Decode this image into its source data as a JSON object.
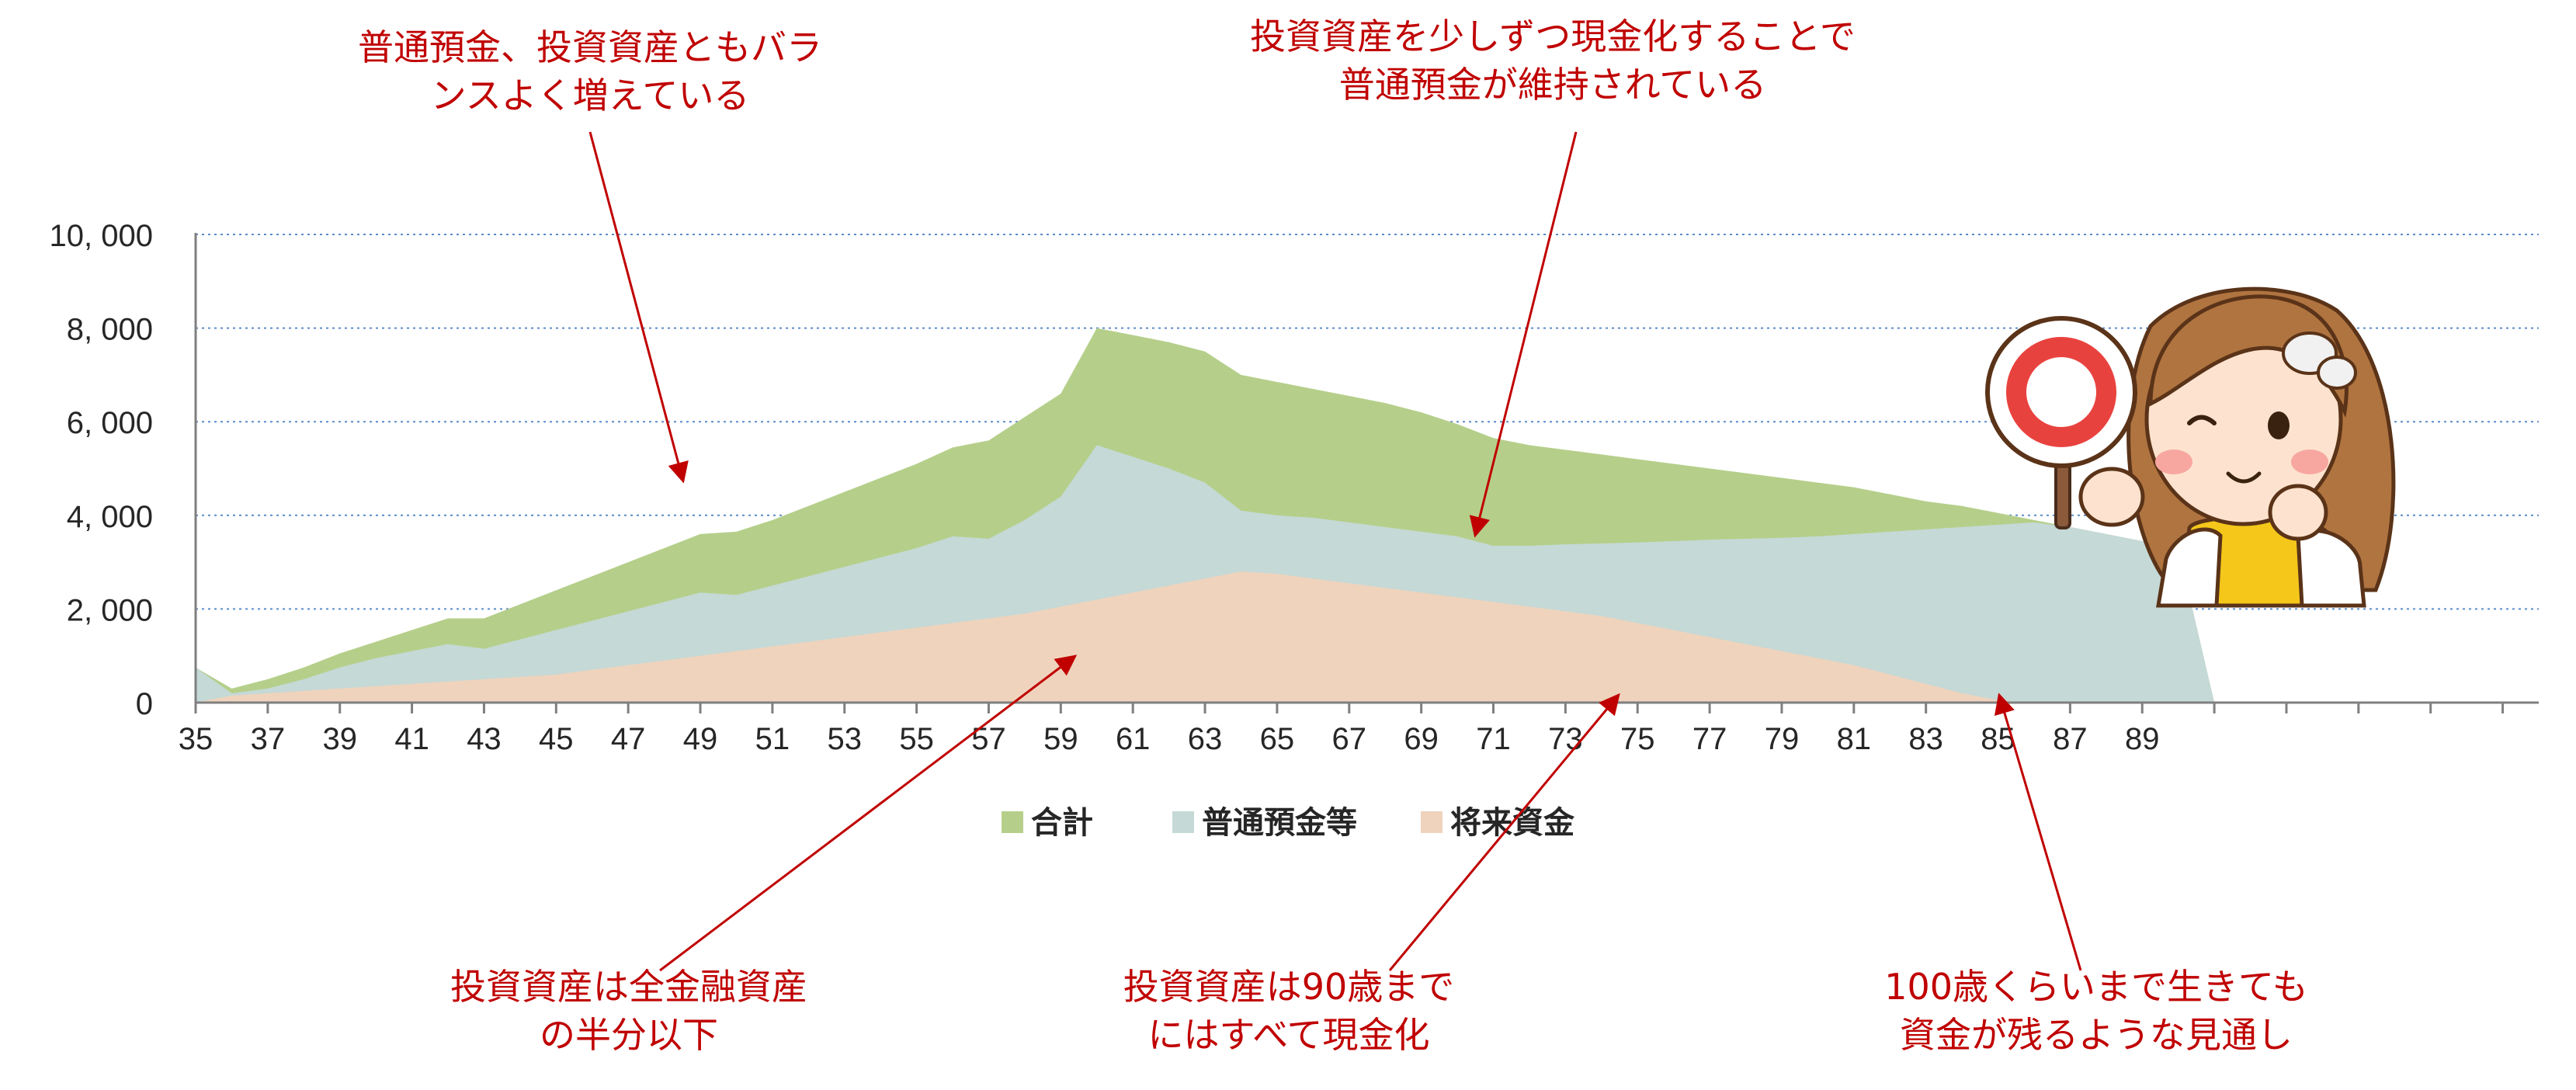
{
  "chart_data": {
    "type": "area",
    "title": "",
    "xlabel": "",
    "ylabel": "",
    "ylim": [
      0,
      10000
    ],
    "y_ticks": [
      "0",
      "2, 000",
      "4, 000",
      "6, 000",
      "8, 000",
      "10, 000"
    ],
    "y_tick_values": [
      0,
      2000,
      4000,
      6000,
      8000,
      10000
    ],
    "x_tick_labels": [
      "35",
      "37",
      "39",
      "41",
      "43",
      "45",
      "47",
      "49",
      "51",
      "53",
      "55",
      "57",
      "59",
      "61",
      "63",
      "65",
      "67",
      "69",
      "71",
      "73",
      "75",
      "77",
      "79",
      "81",
      "83",
      "85",
      "87",
      "89"
    ],
    "x_range": [
      35,
      100
    ],
    "grid": "horizontal-dotted",
    "legend_position": "bottom",
    "colors": {
      "total": "#b5cf8a",
      "savings": "#c5d9d6",
      "future": "#efd3bd",
      "annotation": "#c00000",
      "grid": "#5b8cc8"
    },
    "x": [
      35,
      36,
      37,
      38,
      39,
      40,
      41,
      42,
      43,
      44,
      45,
      46,
      47,
      48,
      49,
      50,
      51,
      52,
      53,
      54,
      55,
      56,
      57,
      58,
      59,
      60,
      61,
      62,
      63,
      64,
      65,
      66,
      67,
      68,
      69,
      70,
      71,
      72,
      73,
      74,
      75,
      76,
      77,
      78,
      79,
      80,
      81,
      82,
      83,
      84,
      85,
      86,
      87,
      88,
      89,
      90,
      91,
      92
    ],
    "series": [
      {
        "name": "合計",
        "values": [
          750,
          300,
          500,
          750,
          1050,
          1300,
          1550,
          1800,
          1800,
          2100,
          2400,
          2700,
          3000,
          3300,
          3600,
          3650,
          3900,
          4200,
          4500,
          4800,
          5100,
          5450,
          5600,
          6100,
          6600,
          8000,
          7850,
          7700,
          7500,
          7000,
          6850,
          6700,
          6550,
          6400,
          6200,
          5950,
          5650,
          5500,
          5400,
          5300,
          5200,
          5100,
          5000,
          4900,
          4800,
          4700,
          4600,
          4450,
          4300,
          4200,
          4050,
          3900,
          3750,
          3600,
          3450,
          3300,
          0,
          0
        ]
      },
      {
        "name": "普通預金等",
        "values": [
          750,
          200,
          300,
          500,
          750,
          950,
          1100,
          1250,
          1150,
          1350,
          1550,
          1750,
          1950,
          2150,
          2350,
          2300,
          2500,
          2700,
          2900,
          3100,
          3300,
          3550,
          3500,
          3900,
          4400,
          5500,
          5250,
          5000,
          4700,
          4100,
          4000,
          3950,
          3850,
          3750,
          3650,
          3550,
          3350,
          3350,
          3380,
          3400,
          3420,
          3450,
          3480,
          3500,
          3520,
          3550,
          3600,
          3650,
          3700,
          3750,
          3800,
          3850,
          3750,
          3600,
          3450,
          3300,
          0,
          0
        ]
      },
      {
        "name": "将来資金",
        "values": [
          0,
          150,
          200,
          250,
          300,
          350,
          400,
          450,
          500,
          550,
          600,
          700,
          800,
          900,
          1000,
          1100,
          1200,
          1300,
          1400,
          1500,
          1600,
          1700,
          1800,
          1900,
          2050,
          2200,
          2350,
          2500,
          2650,
          2800,
          2750,
          2650,
          2550,
          2450,
          2350,
          2250,
          2150,
          2050,
          1950,
          1850,
          1700,
          1550,
          1400,
          1250,
          1100,
          950,
          800,
          600,
          400,
          200,
          50,
          0,
          0,
          0,
          0,
          0,
          0,
          0
        ]
      }
    ]
  },
  "annotations": {
    "a1": {
      "line1": "普通預金、投資資産ともバラ",
      "line2": "ンスよく増えている"
    },
    "a2": {
      "line1": "投資資産を少しずつ現金化することで",
      "line2": "普通預金が維持されている"
    },
    "a3": {
      "line1": "投資資産は全金融資産",
      "line2": "の半分以下"
    },
    "a4": {
      "line1": "投資資産は90歳まで",
      "line2": "にはすべて現金化"
    },
    "a5": {
      "line1": "100歳くらいまで生きても",
      "line2": "資金が残るような見通し"
    }
  },
  "illustration": {
    "icon": "woman-holding-circle-sign-icon"
  }
}
